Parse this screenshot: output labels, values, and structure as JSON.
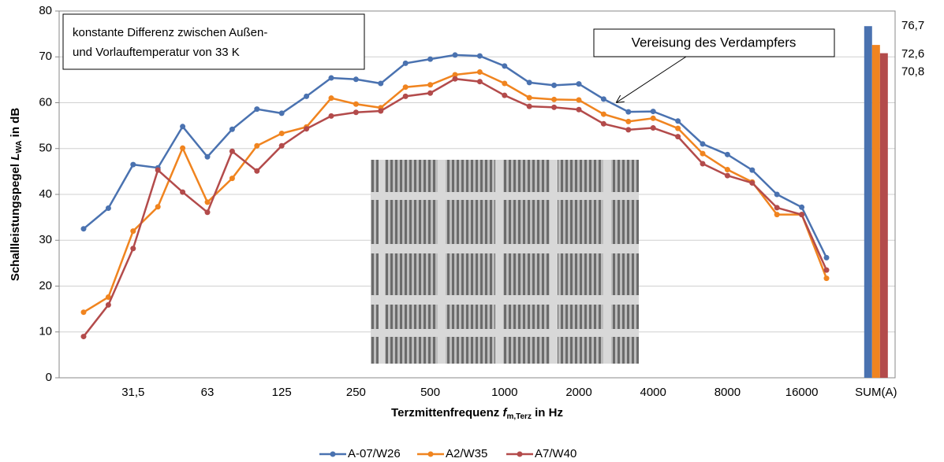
{
  "chart_data": {
    "type": "line",
    "annotations": [
      "konstante Differenz zwischen Außen-",
      "und Vorlauftemperatur von 33 K",
      "Vereisung des Verdampfers"
    ],
    "y_label": [
      "Schallleistungspegel ",
      "L",
      "WA",
      " in dB"
    ],
    "x_label": [
      "Terzmittenfrequenz ",
      "f",
      "m,Terz",
      " in Hz"
    ],
    "categories": [
      null,
      null,
      "31,5",
      null,
      null,
      "63",
      null,
      null,
      "125",
      null,
      null,
      "250",
      null,
      null,
      "500",
      null,
      null,
      "1000",
      null,
      null,
      "2000",
      null,
      null,
      "4000",
      null,
      null,
      "8000",
      null,
      null,
      "16000",
      null
    ],
    "series": [
      {
        "name": "A-07/W26",
        "color": "#4a72b0",
        "values": [
          32.5,
          37,
          46.5,
          45.8,
          54.8,
          48.2,
          54.2,
          58.6,
          57.7,
          61.4,
          65.4,
          65.1,
          64.2,
          68.6,
          69.5,
          70.4,
          70.2,
          68.0,
          64.4,
          63.8,
          64.1,
          60.8,
          58.0,
          58.1,
          56.0,
          51.0,
          48.7,
          45.3,
          40.0,
          37.2,
          26.2
        ]
      },
      {
        "name": "A2/W35",
        "color": "#f0841f",
        "values": [
          14.3,
          17.6,
          32.0,
          37.3,
          50.1,
          38.3,
          43.5,
          50.6,
          53.3,
          54.7,
          61.0,
          59.7,
          58.9,
          63.4,
          63.9,
          66.1,
          66.7,
          64.2,
          61.1,
          60.7,
          60.6,
          57.5,
          55.9,
          56.6,
          54.4,
          48.9,
          45.4,
          42.7,
          35.6,
          35.6,
          21.7
        ]
      },
      {
        "name": "A7/W40",
        "color": "#b34b4b",
        "values": [
          9.0,
          15.9,
          28.2,
          45.3,
          40.5,
          36.1,
          49.4,
          45.1,
          50.6,
          54.3,
          57.1,
          57.9,
          58.2,
          61.4,
          62.1,
          65.2,
          64.6,
          61.6,
          59.2,
          59.0,
          58.5,
          55.4,
          54.1,
          54.5,
          52.6,
          46.7,
          44.1,
          42.5,
          37.1,
          35.6,
          23.5
        ]
      }
    ],
    "sum": {
      "category": "SUM(A)",
      "values": [
        76.7,
        72.6,
        70.8
      ],
      "value_labels": [
        "76,7",
        "72,6",
        "70,8"
      ]
    },
    "ylim": [
      0,
      80
    ],
    "yticks": [
      0,
      10,
      20,
      30,
      40,
      50,
      60,
      70,
      80
    ],
    "grid": true
  }
}
